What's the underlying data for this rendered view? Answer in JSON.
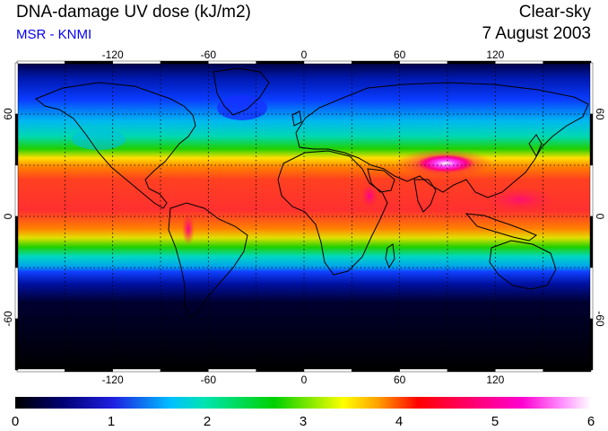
{
  "header": {
    "title": "DNA-damage UV dose (kJ/m2)",
    "source": "MSR - KNMI",
    "condition": "Clear-sky",
    "date": "7 August 2003"
  },
  "map": {
    "projection": "equirectangular",
    "lon_range": [
      -180,
      180
    ],
    "lat_range": [
      -90,
      90
    ],
    "lon_ticks": [
      -120,
      -60,
      0,
      60,
      120
    ],
    "lat_ticks": [
      60,
      0,
      -60
    ],
    "lon_tick_labels": [
      "-120",
      "-60",
      "0",
      "60",
      "120"
    ],
    "lat_tick_labels": [
      "60",
      "0",
      "-60"
    ],
    "grid": true
  },
  "colorbar": {
    "min": 0,
    "max": 6,
    "tick_labels": [
      "0",
      "1",
      "2",
      "3",
      "4",
      "5",
      "6"
    ],
    "colors": {
      "dark": "#000000",
      "blue": "#1f1fe0",
      "cyan": "#00e5e5",
      "green": "#00d000",
      "yellow": "#ffff00",
      "red": "#ff0000",
      "magenta": "#ff00cc",
      "white": "#ffffff"
    }
  }
}
